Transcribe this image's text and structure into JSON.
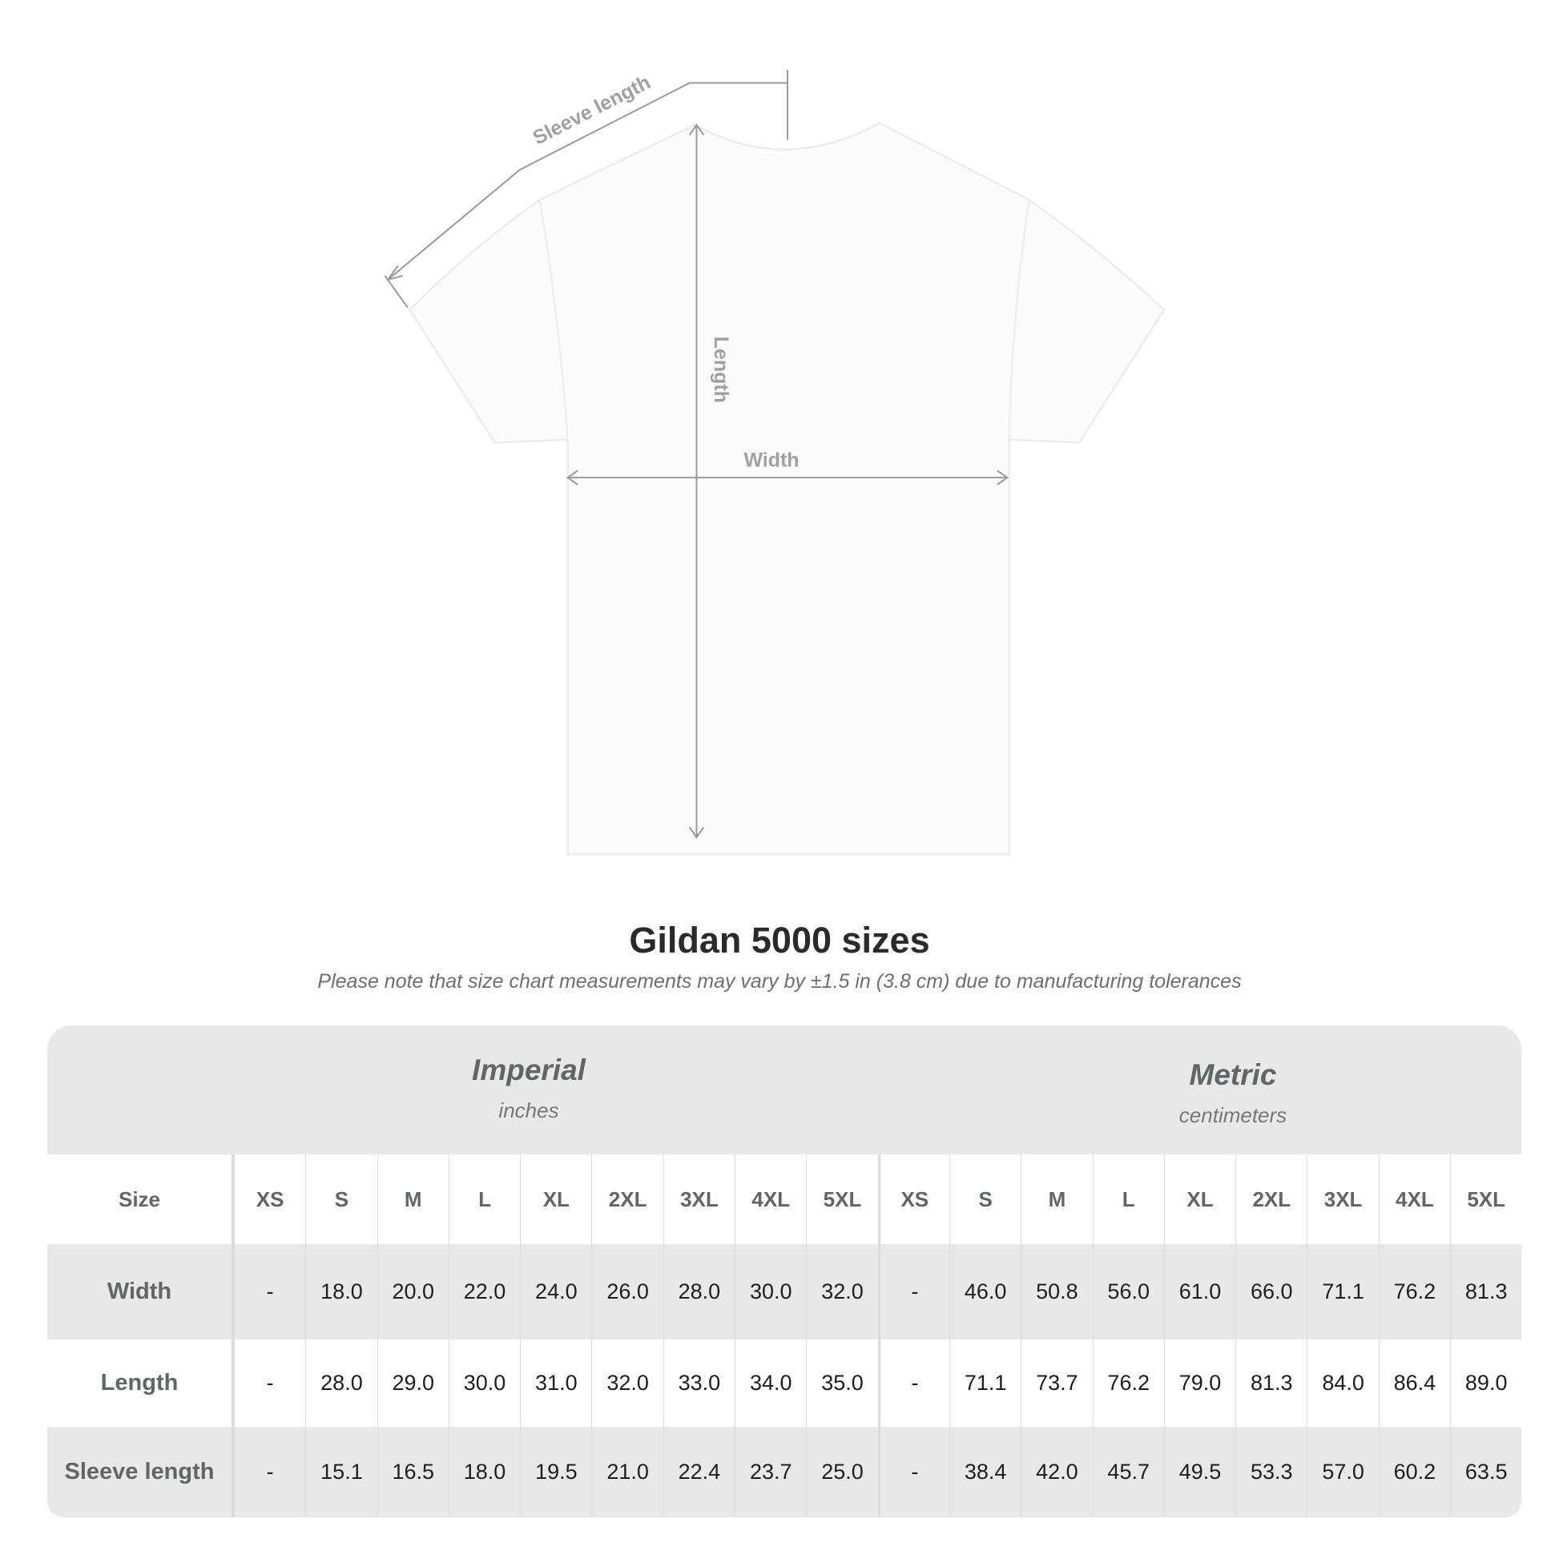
{
  "diagram": {
    "sleeve_label": "Sleeve length",
    "length_label": "Length",
    "width_label": "Width"
  },
  "title": "Gildan 5000 sizes",
  "subtitle": "Please note that size chart measurements may vary by ±1.5 in (3.8 cm) due to manufacturing tolerances",
  "table": {
    "imperial": {
      "name": "Imperial",
      "unit": "inches"
    },
    "metric": {
      "name": "Metric",
      "unit": "centimeters"
    },
    "size_label": "Size",
    "sizes": [
      "XS",
      "S",
      "M",
      "L",
      "XL",
      "2XL",
      "3XL",
      "4XL",
      "5XL"
    ],
    "rows": [
      {
        "label": "Width",
        "imperial": [
          "-",
          "18.0",
          "20.0",
          "22.0",
          "24.0",
          "26.0",
          "28.0",
          "30.0",
          "32.0"
        ],
        "metric": [
          "-",
          "46.0",
          "50.8",
          "56.0",
          "61.0",
          "66.0",
          "71.1",
          "76.2",
          "81.3"
        ]
      },
      {
        "label": "Length",
        "imperial": [
          "-",
          "28.0",
          "29.0",
          "30.0",
          "31.0",
          "32.0",
          "33.0",
          "34.0",
          "35.0"
        ],
        "metric": [
          "-",
          "71.1",
          "73.7",
          "76.2",
          "79.0",
          "81.3",
          "84.0",
          "86.4",
          "89.0"
        ]
      },
      {
        "label": "Sleeve length",
        "imperial": [
          "-",
          "15.1",
          "16.5",
          "18.0",
          "19.5",
          "21.0",
          "22.4",
          "23.7",
          "25.0"
        ],
        "metric": [
          "-",
          "38.4",
          "42.0",
          "45.7",
          "49.5",
          "53.3",
          "57.0",
          "60.2",
          "63.5"
        ]
      }
    ]
  }
}
